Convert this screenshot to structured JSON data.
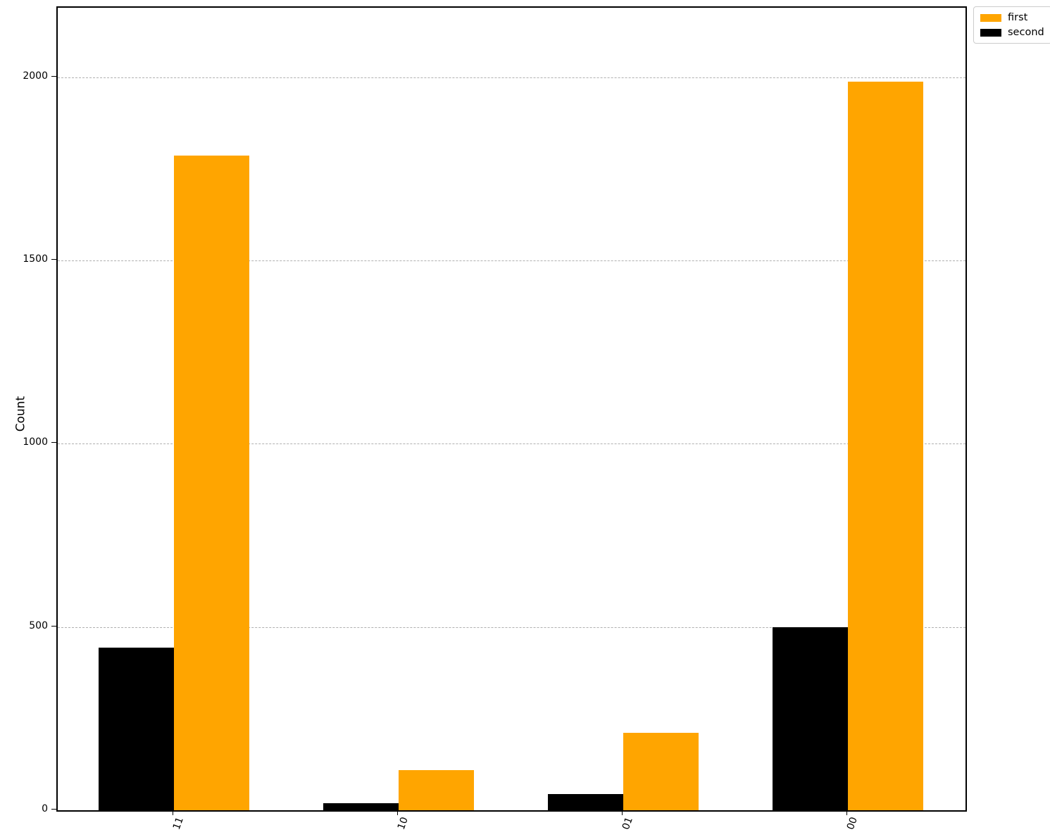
{
  "chart_data": {
    "type": "bar",
    "title": "",
    "categories": [
      "11",
      "10",
      "01",
      "00"
    ],
    "series": [
      {
        "name": "first",
        "color": "#FFA500",
        "values": [
          1787,
          109,
          211,
          1988
        ],
        "group_position": "right"
      },
      {
        "name": "second",
        "color": "#000000",
        "values": [
          443,
          19,
          44,
          500
        ],
        "group_position": "left"
      }
    ],
    "xlabel": "",
    "ylabel": "Count",
    "yticks": [
      0,
      500,
      1000,
      1500,
      2000
    ],
    "ylim": [
      0,
      2190
    ],
    "grid": "horizontal-dashed",
    "gridline_color": "#b0b0b0",
    "legend": {
      "position": "upper-right-outside",
      "entries": [
        {
          "label": "first",
          "color": "#FFA500"
        },
        {
          "label": "second",
          "color": "#000000"
        }
      ]
    },
    "xtick_rotation_deg": 70
  }
}
